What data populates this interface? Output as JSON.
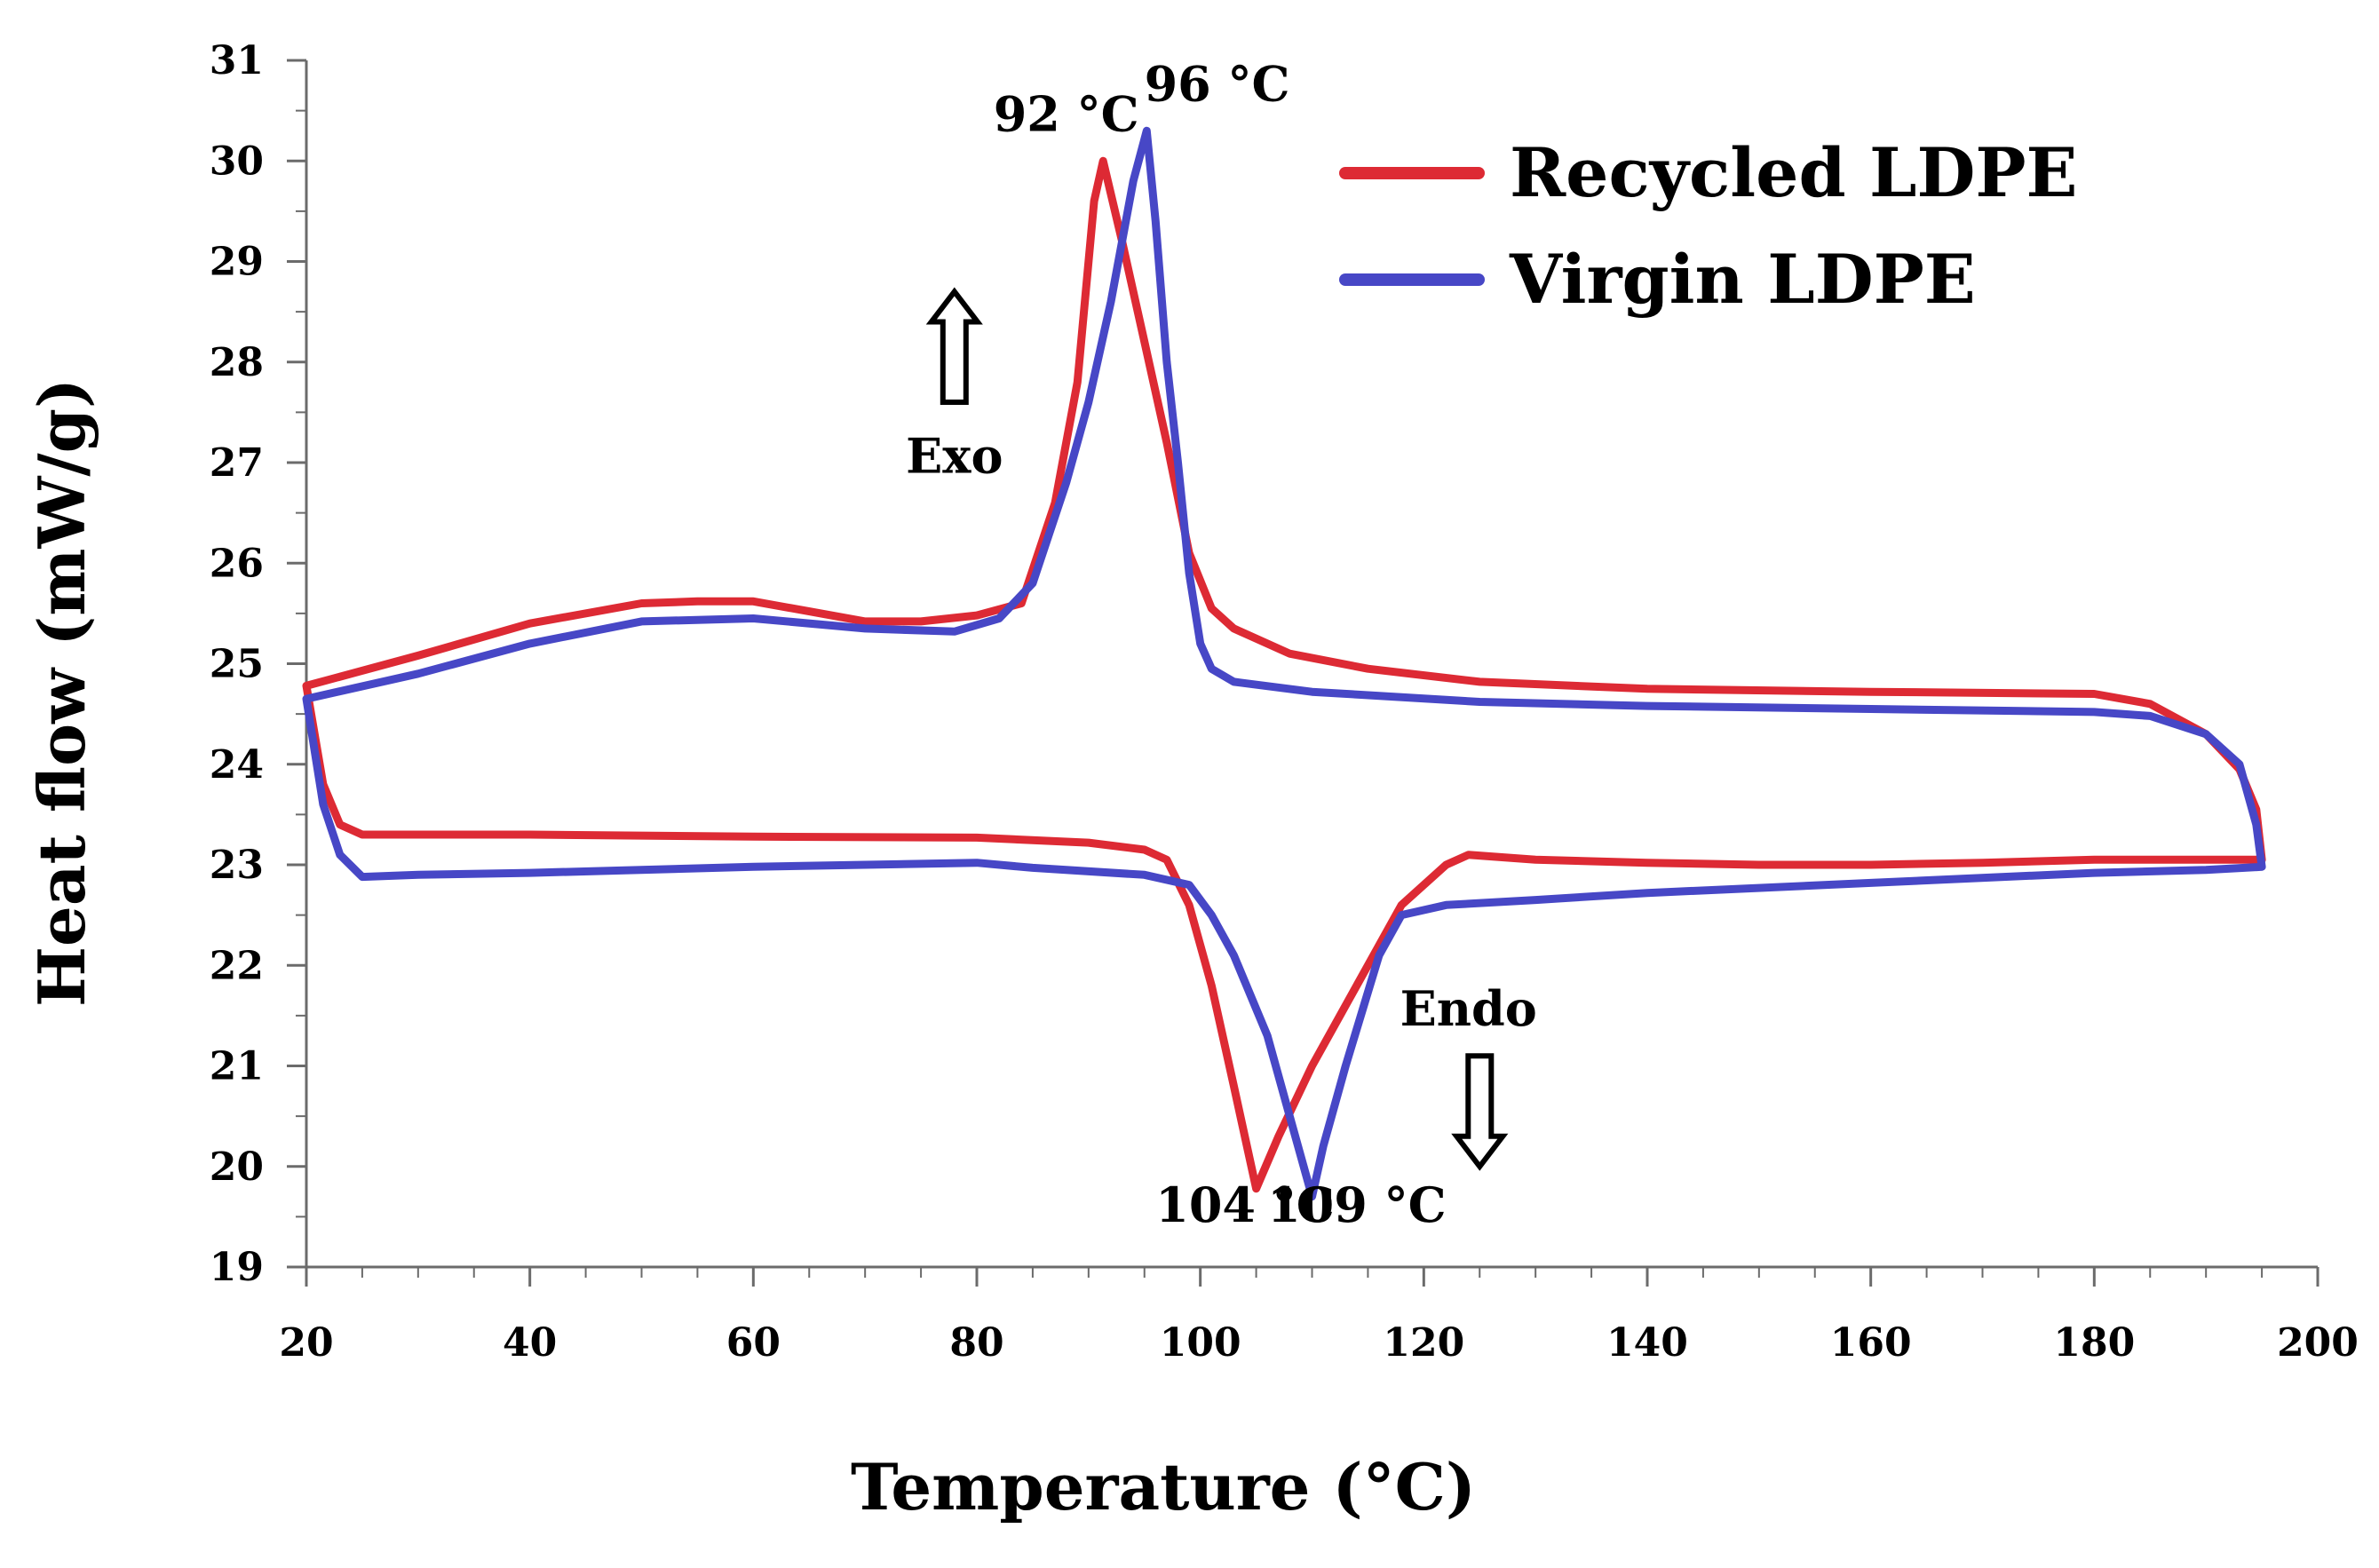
{
  "chart_data": {
    "type": "line",
    "title": "",
    "xlabel": "Temperature (°C)",
    "ylabel": "Heat flow (mW/g)",
    "xlim": [
      20,
      200
    ],
    "ylim": [
      19,
      31
    ],
    "x_ticks": [
      20,
      40,
      60,
      80,
      100,
      120,
      140,
      160,
      180,
      200
    ],
    "y_ticks": [
      19,
      20,
      21,
      22,
      23,
      24,
      25,
      26,
      27,
      28,
      29,
      30,
      31
    ],
    "grid": false,
    "legend_position": "top-right",
    "series": [
      {
        "name": "Recycled LDPE",
        "color": "#dd2a34",
        "points": [
          [
            20,
            24.78
          ],
          [
            30,
            25.08
          ],
          [
            40,
            25.4
          ],
          [
            50,
            25.6
          ],
          [
            55,
            25.62
          ],
          [
            60,
            25.62
          ],
          [
            65,
            25.52
          ],
          [
            70,
            25.42
          ],
          [
            75,
            25.42
          ],
          [
            80,
            25.48
          ],
          [
            84,
            25.6
          ],
          [
            87,
            26.6
          ],
          [
            89,
            27.8
          ],
          [
            90.5,
            29.6
          ],
          [
            91.3,
            30.0
          ],
          [
            93,
            29.2
          ],
          [
            95,
            28.2
          ],
          [
            97,
            27.2
          ],
          [
            99,
            26.1
          ],
          [
            101,
            25.55
          ],
          [
            103,
            25.35
          ],
          [
            108,
            25.1
          ],
          [
            115,
            24.95
          ],
          [
            125,
            24.82
          ],
          [
            140,
            24.75
          ],
          [
            160,
            24.72
          ],
          [
            180,
            24.7
          ],
          [
            185,
            24.6
          ],
          [
            190,
            24.3
          ],
          [
            193,
            23.95
          ],
          [
            194.5,
            23.55
          ],
          [
            195,
            23.05
          ],
          [
            190,
            23.05
          ],
          [
            180,
            23.05
          ],
          [
            170,
            23.02
          ],
          [
            160,
            23.0
          ],
          [
            150,
            23.0
          ],
          [
            140,
            23.02
          ],
          [
            130,
            23.05
          ],
          [
            124,
            23.1
          ],
          [
            122,
            23.0
          ],
          [
            118,
            22.6
          ],
          [
            115,
            22.0
          ],
          [
            110,
            21.0
          ],
          [
            107,
            20.3
          ],
          [
            105,
            19.78
          ],
          [
            103,
            20.8
          ],
          [
            101,
            21.8
          ],
          [
            99,
            22.6
          ],
          [
            97,
            23.05
          ],
          [
            95,
            23.15
          ],
          [
            90,
            23.22
          ],
          [
            80,
            23.27
          ],
          [
            60,
            23.28
          ],
          [
            40,
            23.3
          ],
          [
            30,
            23.3
          ],
          [
            25,
            23.3
          ],
          [
            23,
            23.4
          ],
          [
            21.5,
            23.8
          ],
          [
            20,
            24.78
          ]
        ]
      },
      {
        "name": "Virgin LDPE",
        "color": "#4747c6",
        "points": [
          [
            20,
            24.65
          ],
          [
            30,
            24.9
          ],
          [
            40,
            25.2
          ],
          [
            50,
            25.42
          ],
          [
            60,
            25.45
          ],
          [
            70,
            25.35
          ],
          [
            78,
            25.32
          ],
          [
            82,
            25.45
          ],
          [
            85,
            25.8
          ],
          [
            88,
            26.8
          ],
          [
            90,
            27.6
          ],
          [
            92,
            28.6
          ],
          [
            94,
            29.8
          ],
          [
            95.2,
            30.3
          ],
          [
            96,
            29.4
          ],
          [
            97,
            28.0
          ],
          [
            98,
            27.0
          ],
          [
            99,
            25.9
          ],
          [
            100,
            25.2
          ],
          [
            101,
            24.95
          ],
          [
            103,
            24.82
          ],
          [
            110,
            24.72
          ],
          [
            125,
            24.62
          ],
          [
            140,
            24.58
          ],
          [
            160,
            24.55
          ],
          [
            180,
            24.52
          ],
          [
            185,
            24.48
          ],
          [
            190,
            24.3
          ],
          [
            193,
            24.0
          ],
          [
            194.5,
            23.4
          ],
          [
            195,
            22.98
          ],
          [
            190,
            22.95
          ],
          [
            180,
            22.92
          ],
          [
            160,
            22.82
          ],
          [
            140,
            22.72
          ],
          [
            130,
            22.65
          ],
          [
            122,
            22.6
          ],
          [
            118,
            22.5
          ],
          [
            116,
            22.1
          ],
          [
            113,
            21.0
          ],
          [
            111,
            20.2
          ],
          [
            110,
            19.7
          ],
          [
            108,
            20.5
          ],
          [
            106,
            21.3
          ],
          [
            103,
            22.1
          ],
          [
            101,
            22.5
          ],
          [
            99,
            22.8
          ],
          [
            95,
            22.9
          ],
          [
            85,
            22.97
          ],
          [
            80,
            23.02
          ],
          [
            70,
            23.0
          ],
          [
            60,
            22.98
          ],
          [
            40,
            22.92
          ],
          [
            30,
            22.9
          ],
          [
            25,
            22.88
          ],
          [
            23,
            23.1
          ],
          [
            21.5,
            23.6
          ],
          [
            20,
            24.65
          ]
        ]
      }
    ],
    "annotations": [
      {
        "text": "92 °C",
        "x": 88,
        "y": 30.3
      },
      {
        "text": "96 °C",
        "x": 101.5,
        "y": 30.6
      },
      {
        "text": "104 °C",
        "x": 104,
        "y": 19.45
      },
      {
        "text": "109 °C",
        "x": 114,
        "y": 19.45
      },
      {
        "text": "Exo",
        "x": 78,
        "y": 26.9
      },
      {
        "text": "Endo",
        "x": 124,
        "y": 21.4
      }
    ],
    "arrows": [
      {
        "direction": "up",
        "x": 78,
        "y_from": 27.6,
        "y_to": 28.7
      },
      {
        "direction": "down",
        "x": 125,
        "y_from": 21.1,
        "y_to": 20.0
      }
    ]
  }
}
